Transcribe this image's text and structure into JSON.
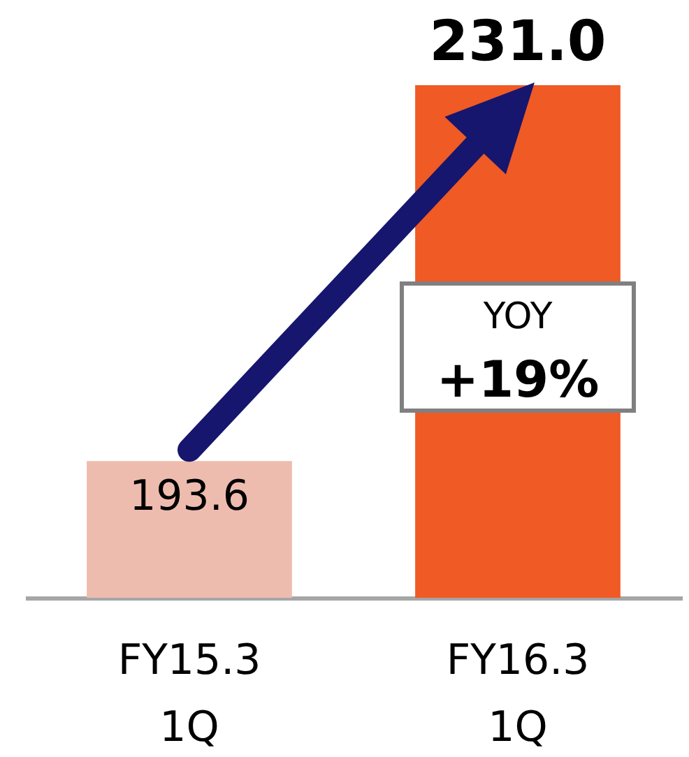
{
  "chart_data": {
    "type": "bar",
    "categories": [
      "FY15.3\n1Q",
      "FY16.3\n1Q"
    ],
    "values": [
      193.6,
      231.0
    ],
    "colors": [
      "#eebcae",
      "#f05a24"
    ],
    "value_labels": [
      "193.6",
      "231.0"
    ],
    "ylim": [
      180,
      231
    ],
    "tick_labels": "x",
    "annotations": [
      "YOY",
      "+19%"
    ]
  }
}
